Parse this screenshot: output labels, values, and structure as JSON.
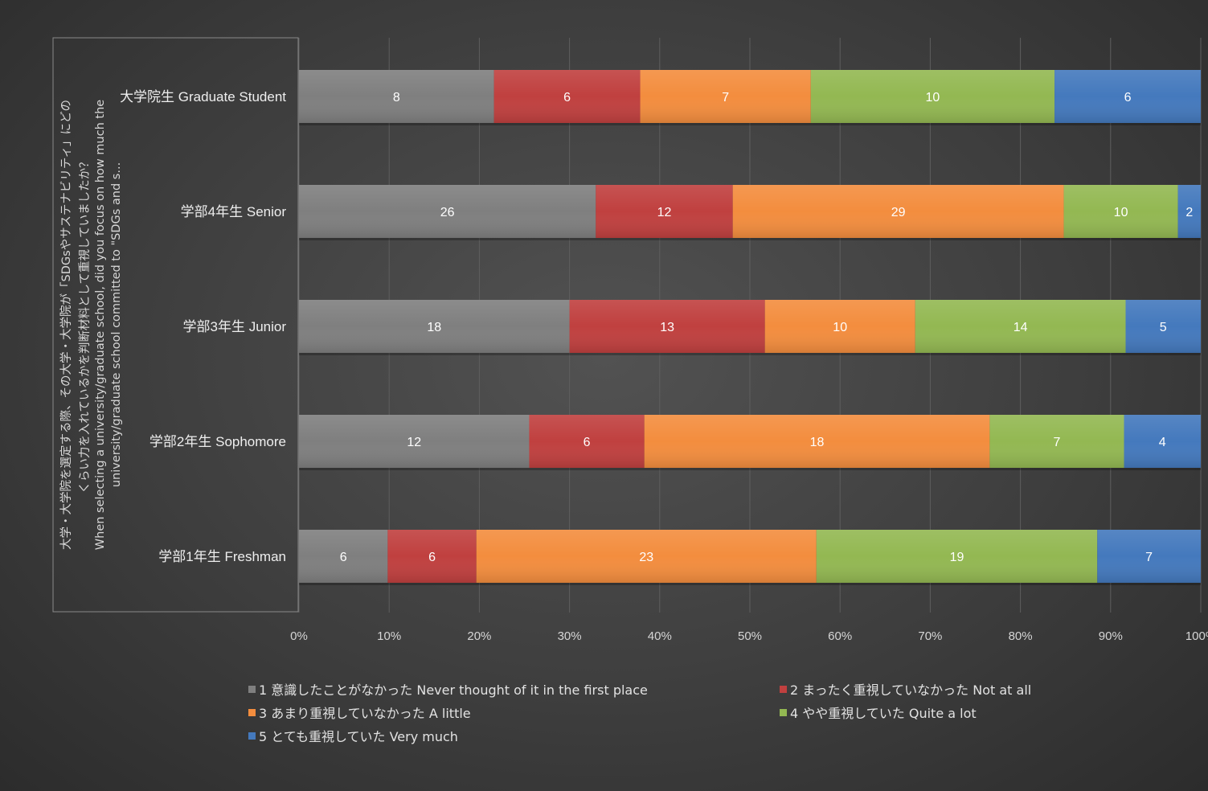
{
  "chart_data": {
    "type": "bar",
    "orientation": "horizontal",
    "stacked": "percent",
    "ylabel_lines": [
      "大学・大学院を選定する際、その大学・大学院が「SDGsやサステナビリティ」にどの",
      "くらい力を入れているかを判断材料として重視していましたか？",
      "When selecting a university/graduate school, did you focus on how much the",
      "university/graduate school committed to \"SDGs and s..."
    ],
    "categories": [
      "大学院生 Graduate Student",
      "学部4年生 Senior",
      "学部3年生 Junior",
      "学部2年生 Sophomore",
      "学部1年生 Freshman"
    ],
    "series": [
      {
        "name": "1 意識したことがなかった Never thought of it in the first place",
        "color": "#7f7f7f",
        "values": [
          8,
          26,
          18,
          12,
          6
        ]
      },
      {
        "name": "2 まったく重視していなかった Not at all",
        "color": "#c0403f",
        "values": [
          6,
          12,
          13,
          6,
          6
        ]
      },
      {
        "name": "3 あまり重視していなかった A little",
        "color": "#f38d3e",
        "values": [
          7,
          29,
          10,
          18,
          23
        ]
      },
      {
        "name": "4 やや重視していた Quite a lot",
        "color": "#93b852",
        "values": [
          10,
          10,
          14,
          7,
          19
        ]
      },
      {
        "name": "5 とても重視していた Very much",
        "color": "#4479bd",
        "values": [
          6,
          2,
          5,
          4,
          7
        ]
      }
    ],
    "xlim": [
      0,
      100
    ],
    "xticks": [
      "0%",
      "10%",
      "20%",
      "30%",
      "40%",
      "50%",
      "60%",
      "70%",
      "80%",
      "90%",
      "100%"
    ],
    "grid": true,
    "legend_position": "bottom"
  }
}
